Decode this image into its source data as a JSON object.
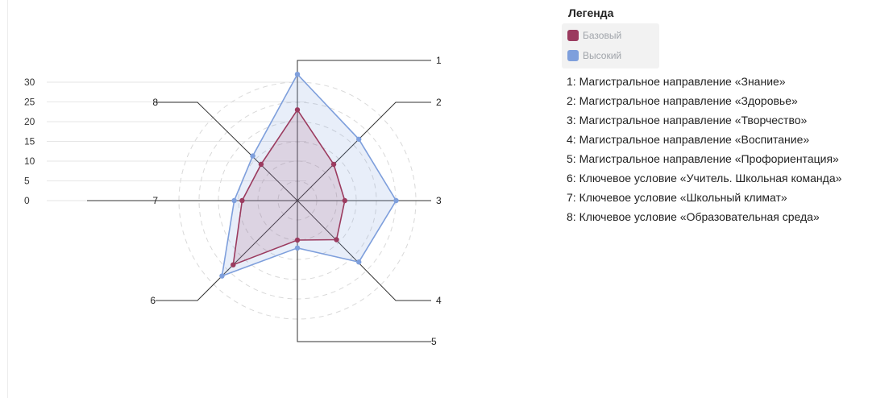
{
  "legend": {
    "title": "Легенда",
    "items": [
      {
        "label": "Базовый",
        "color": "#9b3b5f"
      },
      {
        "label": "Высокий",
        "color": "#7e9fdc"
      }
    ]
  },
  "axis_descriptions": [
    "1: Магистральное направление «Знание»",
    "2: Магистральное направление «Здоровье»",
    "3: Магистральное направление «Творчество»",
    "4: Магистральное направление «Воспитание»",
    "5: Магистральное направление «Профориентация»",
    "6: Ключевое условие «Учитель. Школьная команда»",
    "7: Ключевое условие «Школьный климат»",
    "8: Ключевое условие «Образовательная среда»"
  ],
  "chart_data": {
    "type": "radar",
    "title": "",
    "axes": [
      "1",
      "2",
      "3",
      "4",
      "5",
      "6",
      "7",
      "8"
    ],
    "scale_ticks": [
      0,
      5,
      10,
      15,
      20,
      25,
      30
    ],
    "range": [
      0,
      30
    ],
    "grid": true,
    "series": [
      {
        "name": "Базовый",
        "color": "#9b3b5f",
        "fill": "rgba(155,59,95,0.15)",
        "values": [
          23,
          13,
          12,
          14,
          10,
          23,
          14,
          13
        ]
      },
      {
        "name": "Высокий",
        "color": "#7e9fdc",
        "fill": "rgba(126,159,220,0.18)",
        "values": [
          32,
          22,
          25,
          22,
          12,
          27,
          16,
          16
        ]
      }
    ]
  }
}
